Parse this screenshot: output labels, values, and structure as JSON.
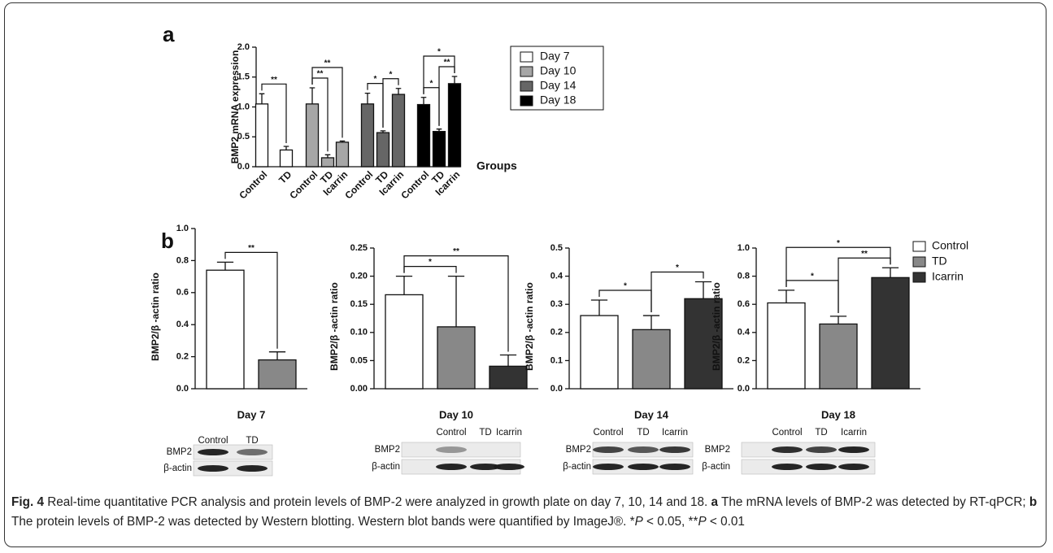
{
  "chart_data": [
    {
      "type": "bar",
      "ylabel": "BMP2 mRNA expression",
      "xlabel": "Groups",
      "ylim": [
        0,
        2.0
      ],
      "yticks": [
        {
          "value": 0,
          "label": "0.0"
        },
        0.5,
        {
          "value": 1,
          "label": "1.0"
        },
        1.5,
        {
          "value": 2,
          "label": "2.0"
        }
      ],
      "series": [
        {
          "name": "Day 7",
          "color": "#ffffff",
          "categories": [
            "Control",
            "TD"
          ],
          "values": [
            1.05,
            0.28
          ],
          "errors": [
            0.17,
            0.06
          ],
          "significance": [
            {
              "pair": [
                "Control",
                "TD"
              ],
              "label": "**"
            }
          ]
        },
        {
          "name": "Day 10",
          "color": "#a6a6a6",
          "categories": [
            "Control",
            "TD",
            "Icarrin"
          ],
          "values": [
            1.05,
            0.15,
            0.41
          ],
          "errors": [
            0.27,
            0.05,
            0.02
          ],
          "significance": [
            {
              "pair": [
                "Control",
                "TD"
              ],
              "label": "**"
            },
            {
              "pair": [
                "Control",
                "Icarrin"
              ],
              "label": "**"
            }
          ]
        },
        {
          "name": "Day 14",
          "color": "#666666",
          "categories": [
            "Control",
            "TD",
            "Icarrin"
          ],
          "values": [
            1.05,
            0.57,
            1.21
          ],
          "errors": [
            0.18,
            0.03,
            0.1
          ],
          "significance": [
            {
              "pair": [
                "Control",
                "TD"
              ],
              "label": "*"
            },
            {
              "pair": [
                "TD",
                "Icarrin"
              ],
              "label": "*"
            }
          ]
        },
        {
          "name": "Day 18",
          "color": "#000000",
          "categories": [
            "Control",
            "TD",
            "Icarrin"
          ],
          "values": [
            1.04,
            0.59,
            1.39
          ],
          "errors": [
            0.12,
            0.04,
            0.12
          ],
          "significance": [
            {
              "pair": [
                "Control",
                "TD"
              ],
              "label": "*"
            },
            {
              "pair": [
                "TD",
                "Icarrin"
              ],
              "label": "**"
            },
            {
              "pair": [
                "Control",
                "Icarrin"
              ],
              "label": "*"
            }
          ]
        }
      ]
    },
    {
      "type": "bar",
      "title": "Day 7",
      "ylabel": "BMP2/β -actin ratio",
      "categories": [
        "Control",
        "TD"
      ],
      "values": [
        0.74,
        0.18
      ],
      "errors": [
        0.05,
        0.05
      ],
      "ylim": [
        0,
        1.0
      ],
      "yticks": [
        {
          "value": 0,
          "label": "0.0"
        },
        0.2,
        0.4,
        0.6,
        0.8,
        {
          "value": 1,
          "label": "1.0"
        }
      ],
      "significance": [
        {
          "pair": [
            "Control",
            "TD"
          ],
          "label": "**"
        }
      ],
      "blot": [
        "BMP2",
        "β-actin"
      ]
    },
    {
      "type": "bar",
      "title": "Day 10",
      "ylabel": "BMP2/β -actin ratio",
      "categories": [
        "Control",
        "TD",
        "Icarrin"
      ],
      "values": [
        0.167,
        0.11,
        0.04
      ],
      "errors": [
        0.033,
        0.09,
        0.02
      ],
      "ylim": [
        0,
        0.25
      ],
      "yticks": [
        {
          "value": 0,
          "label": "0.00"
        },
        {
          "value": 0.05,
          "label": "0.05"
        },
        {
          "value": 0.1,
          "label": "0.10"
        },
        {
          "value": 0.15,
          "label": "0.15"
        },
        {
          "value": 0.2,
          "label": "0.20"
        },
        {
          "value": 0.25,
          "label": "0.25"
        }
      ],
      "significance": [
        {
          "pair": [
            "Control",
            "TD"
          ],
          "label": "*"
        },
        {
          "pair": [
            "Control",
            "Icarrin"
          ],
          "label": "**"
        }
      ],
      "blot": [
        "BMP2",
        "β-actin"
      ]
    },
    {
      "type": "bar",
      "title": "Day 14",
      "ylabel": "BMP2/β -actin ratio",
      "categories": [
        "Control",
        "TD",
        "Icarrin"
      ],
      "values": [
        0.26,
        0.21,
        0.32
      ],
      "errors": [
        0.055,
        0.05,
        0.06
      ],
      "ylim": [
        0,
        0.5
      ],
      "yticks": [
        {
          "value": 0,
          "label": "0.0"
        },
        0.1,
        0.2,
        0.3,
        0.4,
        0.5
      ],
      "significance": [
        {
          "pair": [
            "Control",
            "TD"
          ],
          "label": "*"
        },
        {
          "pair": [
            "TD",
            "Icarrin"
          ],
          "label": "*"
        }
      ],
      "blot": [
        "BMP2",
        "β-actin"
      ]
    },
    {
      "type": "bar",
      "title": "Day 18",
      "ylabel": "BMP2/β -actin ratio",
      "categories": [
        "Control",
        "TD",
        "Icarrin"
      ],
      "values": [
        0.61,
        0.46,
        0.79
      ],
      "errors": [
        0.09,
        0.055,
        0.07
      ],
      "ylim": [
        0,
        1.0
      ],
      "yticks": [
        {
          "value": 0,
          "label": "0.0"
        },
        0.2,
        0.4,
        0.6,
        0.8,
        {
          "value": 1,
          "label": "1.0"
        }
      ],
      "significance": [
        {
          "pair": [
            "Control",
            "TD"
          ],
          "label": "*"
        },
        {
          "pair": [
            "TD",
            "Icarrin"
          ],
          "label": "**"
        },
        {
          "pair": [
            "Control",
            "Icarrin"
          ],
          "label": "*"
        }
      ],
      "blot": [
        "BMP2",
        "β-actin"
      ]
    }
  ],
  "panel_labels": [
    "a",
    "b"
  ],
  "legend_b": [
    {
      "name": "Control",
      "color": "#ffffff"
    },
    {
      "name": "TD",
      "color": "#888888"
    },
    {
      "name": "Icarrin",
      "color": "#333333"
    }
  ],
  "caption": [
    {
      "text": "Fig. 4",
      "style": "bold"
    },
    {
      "text": " Real-time quantitative PCR analysis and protein levels of BMP-2 were analyzed in growth plate on day 7, 10, 14 and 18. ",
      "style": "normal"
    },
    {
      "text": "a",
      "style": "bold"
    },
    {
      "text": " The mRNA levels of BMP-2 was detected by RT-qPCR; ",
      "style": "normal"
    },
    {
      "text": "b",
      "style": "bold"
    },
    {
      "text": " The protein levels of BMP-2 was detected by Western blotting. Western blot bands were quantified by ImageJ®. *",
      "style": "normal"
    },
    {
      "text": "P",
      "style": "italic"
    },
    {
      "text": " < 0.05, **",
      "style": "normal"
    },
    {
      "text": "P",
      "style": "italic"
    },
    {
      "text": " < 0.01",
      "style": "normal"
    }
  ]
}
